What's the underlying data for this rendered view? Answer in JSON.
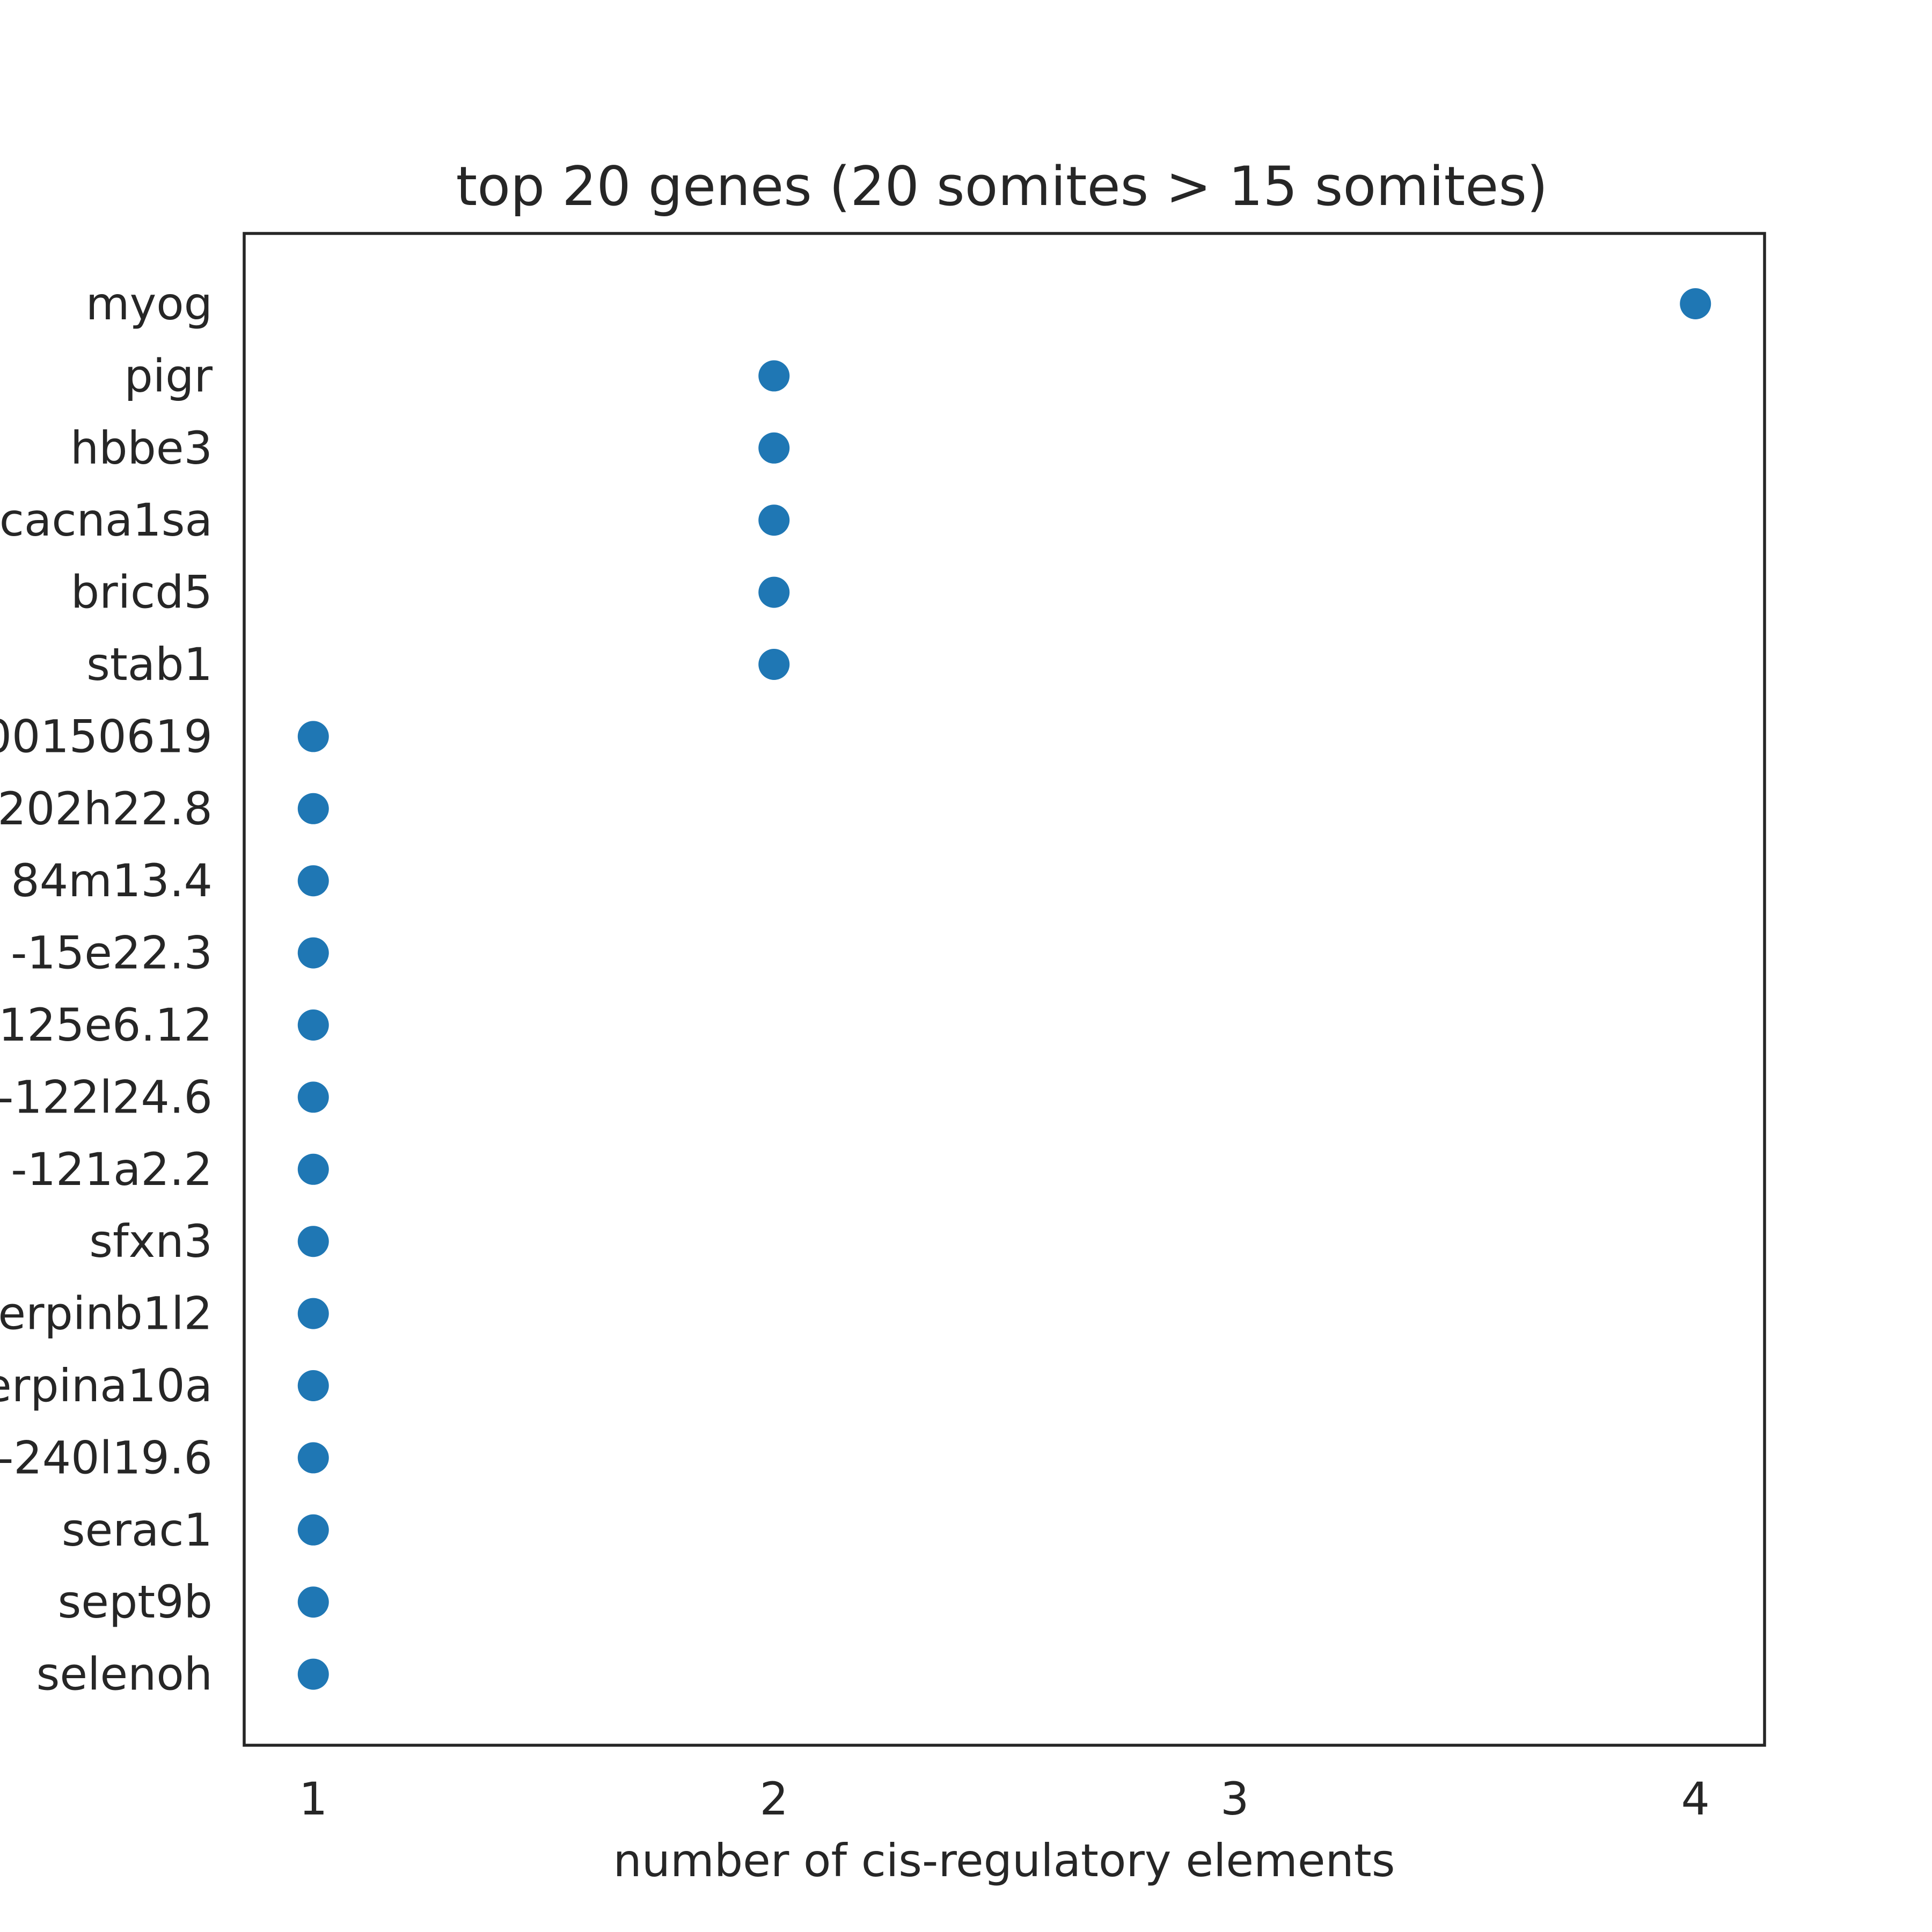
{
  "chart_data": {
    "type": "scatter",
    "title": "top 20 genes (20 somites > 15 somites)",
    "xlabel": "number of cis-regulatory elements",
    "ylabel": "",
    "xlim": [
      0.85,
      4.15
    ],
    "xticks": [
      1,
      2,
      3,
      4
    ],
    "grid": false,
    "legend": "none",
    "marker_color": "#1f77b4",
    "categories": [
      "myog",
      "pigr",
      "hbbe3",
      "cacna1sa",
      "bricd5",
      "stab1",
      "00150619",
      "202h22.8",
      "84m13.4",
      "-15e22.3",
      "125e6.12",
      "-122l24.6",
      "-121a2.2",
      "sfxn3",
      "erpinb1l2",
      "erpina10a",
      "-240l19.6",
      "serac1",
      "sept9b",
      "selenoh"
    ],
    "values": [
      4,
      2,
      2,
      2,
      2,
      2,
      1,
      1,
      1,
      1,
      1,
      1,
      1,
      1,
      1,
      1,
      1,
      1,
      1,
      1
    ]
  }
}
